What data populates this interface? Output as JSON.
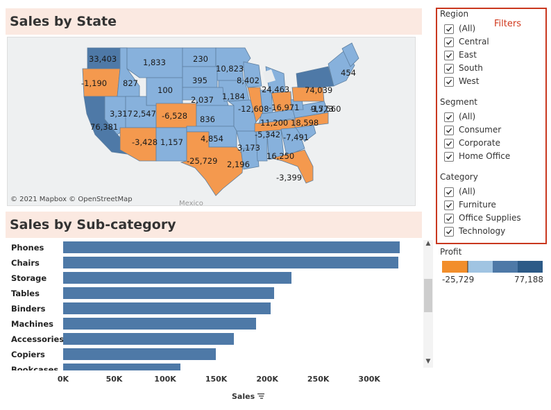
{
  "titles": {
    "sales_by_state": "Sales by State",
    "sales_by_subcategory": "Sales by Sub-category"
  },
  "map": {
    "attribution": "© 2021 Mapbox © OpenStreetMap",
    "background_label": "Mexico",
    "state_labels": [
      {
        "state": "WA",
        "profit": "33,403"
      },
      {
        "state": "OR",
        "profit": "-1,190"
      },
      {
        "state": "ID",
        "profit": "827"
      },
      {
        "state": "MT",
        "profit": "1,833"
      },
      {
        "state": "WY",
        "profit": "100"
      },
      {
        "state": "ND",
        "profit": "230"
      },
      {
        "state": "SD",
        "profit": "395"
      },
      {
        "state": "MN",
        "profit": "10,823"
      },
      {
        "state": "WI",
        "profit": "8,402"
      },
      {
        "state": "MI",
        "profit": "24,463"
      },
      {
        "state": "NV",
        "profit": "3,317"
      },
      {
        "state": "UT",
        "profit": "2,547"
      },
      {
        "state": "CO",
        "profit": "-6,528"
      },
      {
        "state": "NE",
        "profit": "2,037"
      },
      {
        "state": "IA",
        "profit": "1,184"
      },
      {
        "state": "IL",
        "profit": "-12,608"
      },
      {
        "state": "OH",
        "profit": "-16,971"
      },
      {
        "state": "PA",
        "profit": "-15,560"
      },
      {
        "state": "NY",
        "profit": "74,039"
      },
      {
        "state": "ME",
        "profit": "454"
      },
      {
        "state": "CA",
        "profit": "76,381"
      },
      {
        "state": "AZ",
        "profit": "-3,428"
      },
      {
        "state": "NM",
        "profit": "1,157"
      },
      {
        "state": "KS",
        "profit": "836"
      },
      {
        "state": "OK",
        "profit": "4,854"
      },
      {
        "state": "TX",
        "profit": "-25,729"
      },
      {
        "state": "AR",
        "profit": "3,173"
      },
      {
        "state": "LA",
        "profit": "2,196"
      },
      {
        "state": "AL",
        "profit": "16,250"
      },
      {
        "state": "FL",
        "profit": "-3,399"
      },
      {
        "state": "TN",
        "profit": "-5,342"
      },
      {
        "state": "NC",
        "profit": "-7,491"
      },
      {
        "state": "KY",
        "profit": "11,200"
      },
      {
        "state": "VA",
        "profit": "18,598"
      },
      {
        "state": "MD",
        "profit": "9,773"
      }
    ]
  },
  "chart_data": {
    "type": "bar",
    "orientation": "horizontal",
    "title": "Sales by Sub-category",
    "xlabel": "Sales",
    "categories": [
      "Phones",
      "Chairs",
      "Storage",
      "Tables",
      "Binders",
      "Machines",
      "Accessories",
      "Copiers",
      "Bookcases"
    ],
    "values": [
      330007,
      328449,
      223844,
      206966,
      203413,
      189239,
      167380,
      149528,
      114880
    ],
    "xlim": [
      0,
      340000
    ],
    "x_ticks": [
      "0K",
      "50K",
      "100K",
      "150K",
      "200K",
      "250K",
      "300K"
    ],
    "bar_color": "#4e79a7"
  },
  "filters": {
    "title": "Filters",
    "groups": [
      {
        "title": "Region",
        "items": [
          "(All)",
          "Central",
          "East",
          "South",
          "West"
        ]
      },
      {
        "title": "Segment",
        "items": [
          "(All)",
          "Consumer",
          "Corporate",
          "Home Office"
        ]
      },
      {
        "title": "Category",
        "items": [
          "(All)",
          "Furniture",
          "Office Supplies",
          "Technology"
        ]
      }
    ],
    "all_checked": true,
    "border_color": "#c9371e"
  },
  "profit_legend": {
    "title": "Profit",
    "min_label": "-25,729",
    "max_label": "77,188",
    "colors": [
      "#f28e2b",
      "#a0c4e2",
      "#7aa6d0",
      "#4e79a7",
      "#2c5a87"
    ]
  },
  "colors": {
    "title_band": "#fbe9e1",
    "positive_state": "#87b1dc",
    "negative_state": "#f4994e",
    "high_state": "#4e79a7"
  }
}
